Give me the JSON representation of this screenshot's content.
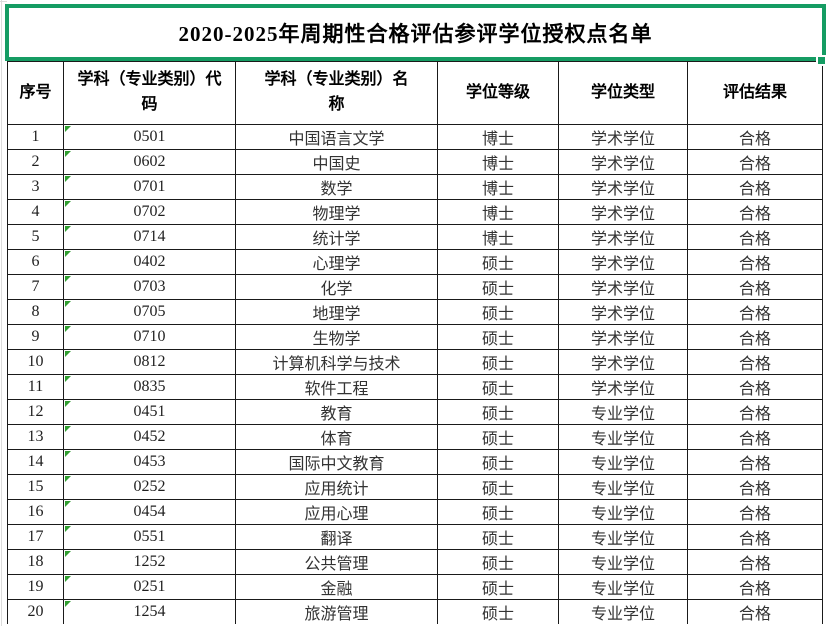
{
  "title": "2020-2025年周期性合格评估参评学位授权点名单",
  "table": {
    "headers": [
      "序号",
      "学科（专业类别）代码",
      "学科（专业类别）名称",
      "学位等级",
      "学位类型",
      "评估结果"
    ],
    "rows": [
      [
        "1",
        "0501",
        "中国语言文学",
        "博士",
        "学术学位",
        "合格"
      ],
      [
        "2",
        "0602",
        "中国史",
        "博士",
        "学术学位",
        "合格"
      ],
      [
        "3",
        "0701",
        "数学",
        "博士",
        "学术学位",
        "合格"
      ],
      [
        "4",
        "0702",
        "物理学",
        "博士",
        "学术学位",
        "合格"
      ],
      [
        "5",
        "0714",
        "统计学",
        "博士",
        "学术学位",
        "合格"
      ],
      [
        "6",
        "0402",
        "心理学",
        "硕士",
        "学术学位",
        "合格"
      ],
      [
        "7",
        "0703",
        "化学",
        "硕士",
        "学术学位",
        "合格"
      ],
      [
        "8",
        "0705",
        "地理学",
        "硕士",
        "学术学位",
        "合格"
      ],
      [
        "9",
        "0710",
        "生物学",
        "硕士",
        "学术学位",
        "合格"
      ],
      [
        "10",
        "0812",
        "计算机科学与技术",
        "硕士",
        "学术学位",
        "合格"
      ],
      [
        "11",
        "0835",
        "软件工程",
        "硕士",
        "学术学位",
        "合格"
      ],
      [
        "12",
        "0451",
        "教育",
        "硕士",
        "专业学位",
        "合格"
      ],
      [
        "13",
        "0452",
        "体育",
        "硕士",
        "专业学位",
        "合格"
      ],
      [
        "14",
        "0453",
        "国际中文教育",
        "硕士",
        "专业学位",
        "合格"
      ],
      [
        "15",
        "0252",
        "应用统计",
        "硕士",
        "专业学位",
        "合格"
      ],
      [
        "16",
        "0454",
        "应用心理",
        "硕士",
        "专业学位",
        "合格"
      ],
      [
        "17",
        "0551",
        "翻译",
        "硕士",
        "专业学位",
        "合格"
      ],
      [
        "18",
        "1252",
        "公共管理",
        "硕士",
        "专业学位",
        "合格"
      ],
      [
        "19",
        "0251",
        "金融",
        "硕士",
        "专业学位",
        "合格"
      ],
      [
        "20",
        "1254",
        "旅游管理",
        "硕士",
        "专业学位",
        "合格"
      ]
    ]
  },
  "colors": {
    "selection_green": "#159C63",
    "indicator_green": "#2F9E2F",
    "grid_line": "#1A1A1A",
    "cell_text": "#333333",
    "background": "#FFFFFF"
  },
  "icons": {
    "fill_handle": "fill-handle",
    "text_format_indicator": "text-format-indicator-icon"
  }
}
